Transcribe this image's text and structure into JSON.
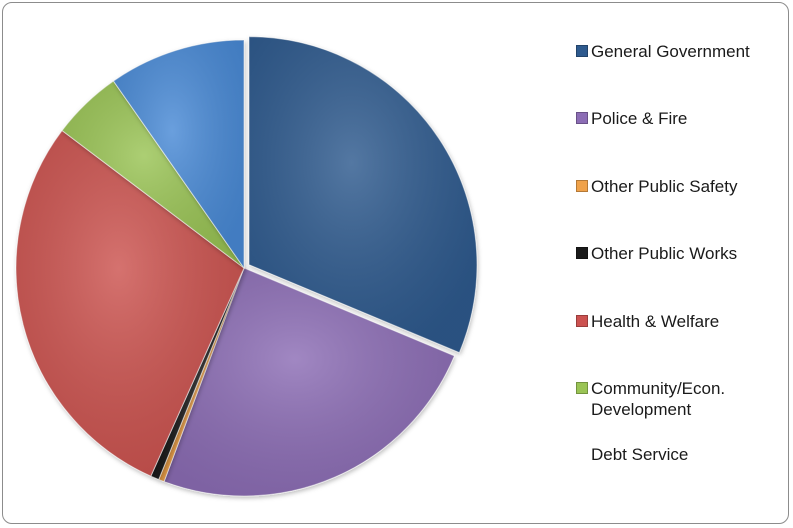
{
  "chart_data": {
    "type": "pie",
    "categories": [
      "General Government",
      "Police & Fire",
      "Other Public Safety",
      "Other Public Works",
      "Health & Welfare",
      "Community/Econ. Development",
      "Debt Service",
      "(unlabeled)"
    ],
    "values": [
      31.3,
      24.4,
      0.4,
      0.6,
      28.6,
      5.0,
      0,
      9.7
    ],
    "colors": [
      "#2e5a8e",
      "#8c6db5",
      "#f0a24a",
      "#1a1a1a",
      "#cc5250",
      "#9ac455",
      "#ffffff",
      "#4a8ad6"
    ],
    "legend": [
      {
        "label": "General Government",
        "color": "#2e5a8e"
      },
      {
        "label": "Police & Fire",
        "color": "#8c6db5"
      },
      {
        "label": "Other Public Safety",
        "color": "#f0a24a"
      },
      {
        "label": "Other Public Works",
        "color": "#1a1a1a"
      },
      {
        "label": "Health & Welfare",
        "color": "#cc5250"
      },
      {
        "label": "Community/Econ.\nDevelopment",
        "color": "#9ac455"
      },
      {
        "label": "Debt Service",
        "color": null
      }
    ],
    "legend_position": "right",
    "exploded_slices": [
      "General Government"
    ],
    "gap_slice": "Debt Service"
  }
}
